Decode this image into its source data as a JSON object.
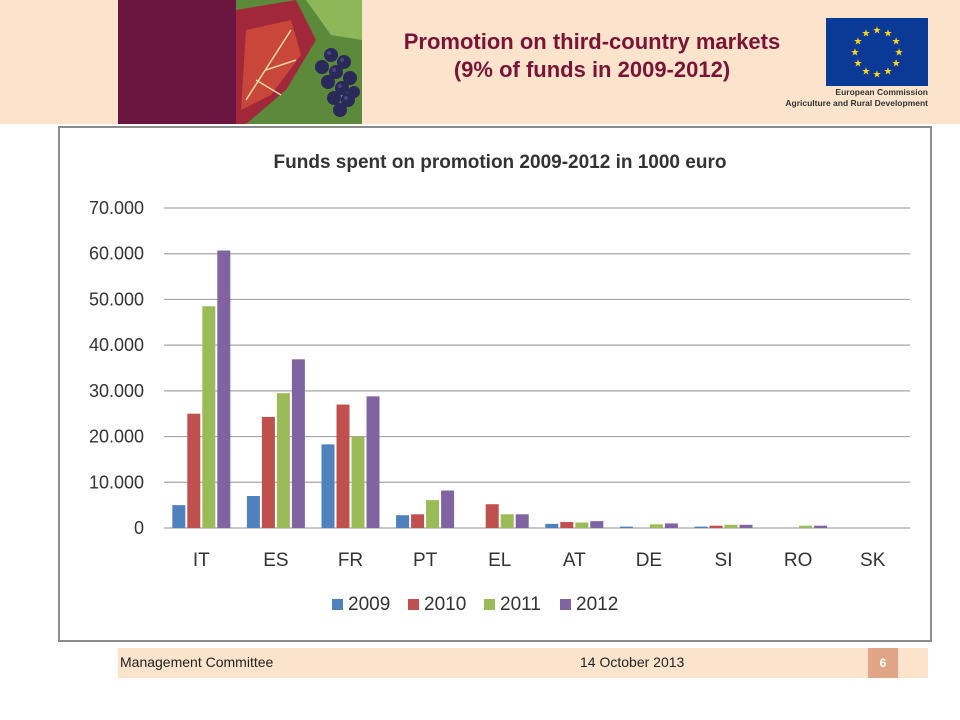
{
  "slide": {
    "title_line1": "Promotion on third-country markets",
    "title_line2": "(9% of funds in 2009-2012)",
    "ec_line1": "European Commission",
    "ec_line2": "Agriculture and Rural Development",
    "footer_left": "Management Committee",
    "footer_date": "14 October 2013",
    "page_number": "6"
  },
  "colors": {
    "title": "#7a1437",
    "band": "#fce4cc",
    "maroon": "#6b1640",
    "eu_blue": "#0b3a96",
    "eu_star": "#ffd617"
  },
  "chart_data": {
    "type": "bar",
    "title": "Funds spent on promotion 2009-2012 in 1000 euro",
    "categories": [
      "IT",
      "ES",
      "FR",
      "PT",
      "EL",
      "AT",
      "DE",
      "SI",
      "RO",
      "SK"
    ],
    "series": [
      {
        "name": "2009",
        "color": "#4f81bd",
        "values": [
          5000,
          7000,
          18300,
          2800,
          0,
          900,
          300,
          300,
          0,
          0
        ]
      },
      {
        "name": "2010",
        "color": "#c0504d",
        "values": [
          25000,
          24300,
          27000,
          3000,
          5200,
          1300,
          0,
          500,
          0,
          0
        ]
      },
      {
        "name": "2011",
        "color": "#9bbb59",
        "values": [
          48500,
          29500,
          20000,
          6100,
          3000,
          1200,
          800,
          700,
          500,
          0
        ]
      },
      {
        "name": "2012",
        "color": "#8064a2",
        "values": [
          60700,
          36900,
          28800,
          8200,
          3000,
          1500,
          1000,
          700,
          500,
          0
        ]
      }
    ],
    "yticks": [
      "0",
      "10.000",
      "20.000",
      "30.000",
      "40.000",
      "50.000",
      "60.000",
      "70.000"
    ],
    "ylim": [
      0,
      70000
    ],
    "grid": true,
    "legend": "bottom"
  }
}
